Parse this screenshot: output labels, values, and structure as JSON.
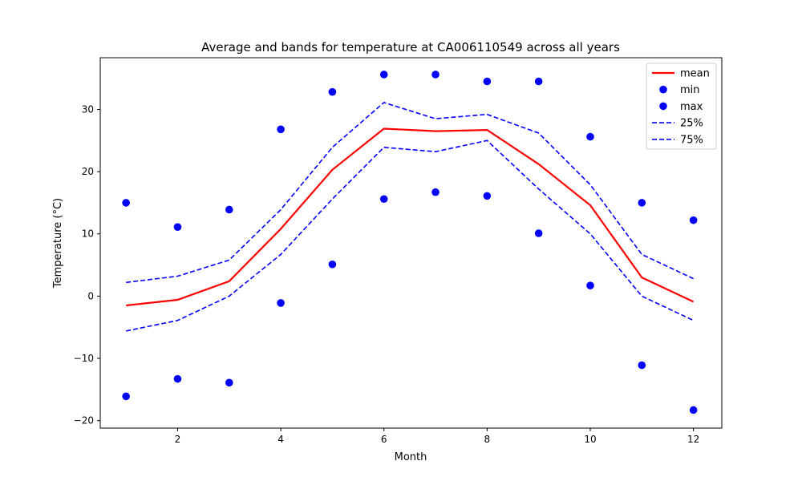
{
  "chart_data": {
    "type": "line",
    "title": "Average and bands for temperature at CA006110549 across all years",
    "xlabel": "Month",
    "ylabel": "Temperature (°C)",
    "xlim": [
      0.5,
      12.55
    ],
    "ylim": [
      -21.2,
      38.3
    ],
    "x_ticks": [
      2,
      4,
      6,
      8,
      10,
      12
    ],
    "y_ticks": [
      -20,
      -10,
      0,
      10,
      20,
      30
    ],
    "x": [
      1,
      2,
      3,
      4,
      5,
      6,
      7,
      8,
      9,
      10,
      11,
      12
    ],
    "series": [
      {
        "name": "mean",
        "kind": "line",
        "color": "#ff0000",
        "dash": "solid",
        "values": [
          -1.5,
          -0.6,
          2.4,
          10.8,
          20.3,
          26.9,
          26.5,
          26.7,
          21.2,
          14.6,
          3.0,
          -0.9
        ]
      },
      {
        "name": "min",
        "kind": "scatter",
        "color": "#0000ff",
        "values": [
          -16.1,
          -13.3,
          -13.9,
          -1.1,
          5.1,
          15.6,
          16.7,
          16.1,
          10.1,
          1.7,
          -11.1,
          -18.3
        ]
      },
      {
        "name": "max",
        "kind": "scatter",
        "color": "#0000ff",
        "values": [
          15.0,
          11.1,
          13.9,
          26.8,
          32.8,
          35.6,
          35.6,
          34.5,
          34.5,
          25.6,
          15.0,
          12.2
        ]
      },
      {
        "name": "25%",
        "kind": "line",
        "color": "#0000ff",
        "dash": "dashed",
        "values": [
          2.2,
          3.2,
          5.8,
          13.9,
          23.9,
          31.1,
          28.5,
          29.2,
          26.2,
          17.9,
          6.7,
          2.8
        ]
      },
      {
        "name": "75%",
        "kind": "line",
        "color": "#0000ff",
        "dash": "dashed",
        "values": [
          -5.6,
          -3.9,
          0.0,
          6.7,
          15.6,
          23.9,
          23.2,
          25.0,
          17.2,
          10.0,
          0.0,
          -3.9
        ]
      }
    ],
    "legend_position": "top-right",
    "grid": false
  }
}
